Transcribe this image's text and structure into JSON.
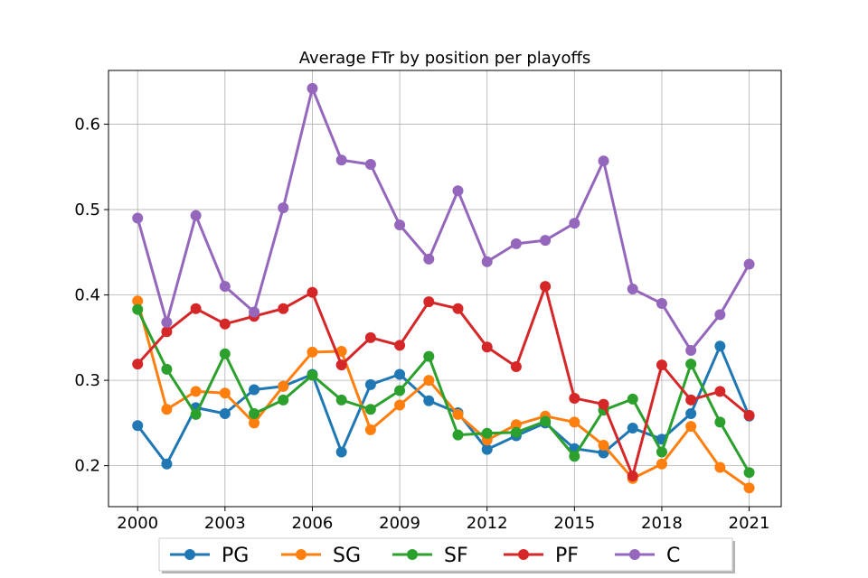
{
  "chart_data": {
    "type": "line",
    "title": "Average FTr by position per playoffs",
    "xlabel": "",
    "ylabel": "",
    "x": [
      2000,
      2001,
      2002,
      2003,
      2004,
      2005,
      2006,
      2007,
      2008,
      2009,
      2010,
      2011,
      2012,
      2013,
      2014,
      2015,
      2016,
      2017,
      2018,
      2019,
      2020,
      2021
    ],
    "xticks": [
      2000,
      2003,
      2006,
      2009,
      2012,
      2015,
      2018,
      2021
    ],
    "xtick_labels": [
      "2000",
      "2003",
      "2006",
      "2009",
      "2012",
      "2015",
      "2018",
      "2021"
    ],
    "yticks": [
      0.2,
      0.3,
      0.4,
      0.5,
      0.6
    ],
    "ytick_labels": [
      "0.2",
      "0.3",
      "0.4",
      "0.5",
      "0.6"
    ],
    "xlim": [
      1999.0,
      2022.1
    ],
    "ylim": [
      0.152,
      0.663
    ],
    "grid": true,
    "legend_position": "bottom-center",
    "series": [
      {
        "name": "PG",
        "color": "#1f77b4",
        "values": [
          0.247,
          0.202,
          0.268,
          0.261,
          0.289,
          0.293,
          0.307,
          0.216,
          0.295,
          0.307,
          0.276,
          0.262,
          0.219,
          0.235,
          0.25,
          0.22,
          0.215,
          0.244,
          0.231,
          0.261,
          0.34,
          0.258
        ]
      },
      {
        "name": "SG",
        "color": "#ff7f0e",
        "values": [
          0.393,
          0.266,
          0.287,
          0.285,
          0.25,
          0.293,
          0.333,
          0.334,
          0.242,
          0.271,
          0.3,
          0.26,
          0.23,
          0.248,
          0.258,
          0.251,
          0.224,
          0.185,
          0.202,
          0.246,
          0.198,
          0.174
        ]
      },
      {
        "name": "SF",
        "color": "#2ca02c",
        "values": [
          0.383,
          0.313,
          0.26,
          0.331,
          0.261,
          0.277,
          0.306,
          0.277,
          0.266,
          0.288,
          0.328,
          0.236,
          0.238,
          0.239,
          0.252,
          0.211,
          0.265,
          0.278,
          0.216,
          0.319,
          0.251,
          0.192
        ]
      },
      {
        "name": "PF",
        "color": "#d62728",
        "values": [
          0.319,
          0.357,
          0.384,
          0.366,
          0.375,
          0.384,
          0.403,
          0.318,
          0.35,
          0.341,
          0.392,
          0.384,
          0.339,
          0.316,
          0.41,
          0.279,
          0.272,
          0.188,
          0.318,
          0.277,
          0.287,
          0.259
        ]
      },
      {
        "name": "C",
        "color": "#9467bd",
        "values": [
          0.49,
          0.368,
          0.493,
          0.41,
          0.38,
          0.502,
          0.642,
          0.558,
          0.553,
          0.482,
          0.442,
          0.522,
          0.439,
          0.46,
          0.464,
          0.484,
          0.557,
          0.407,
          0.39,
          0.335,
          0.377,
          0.436
        ]
      }
    ]
  }
}
